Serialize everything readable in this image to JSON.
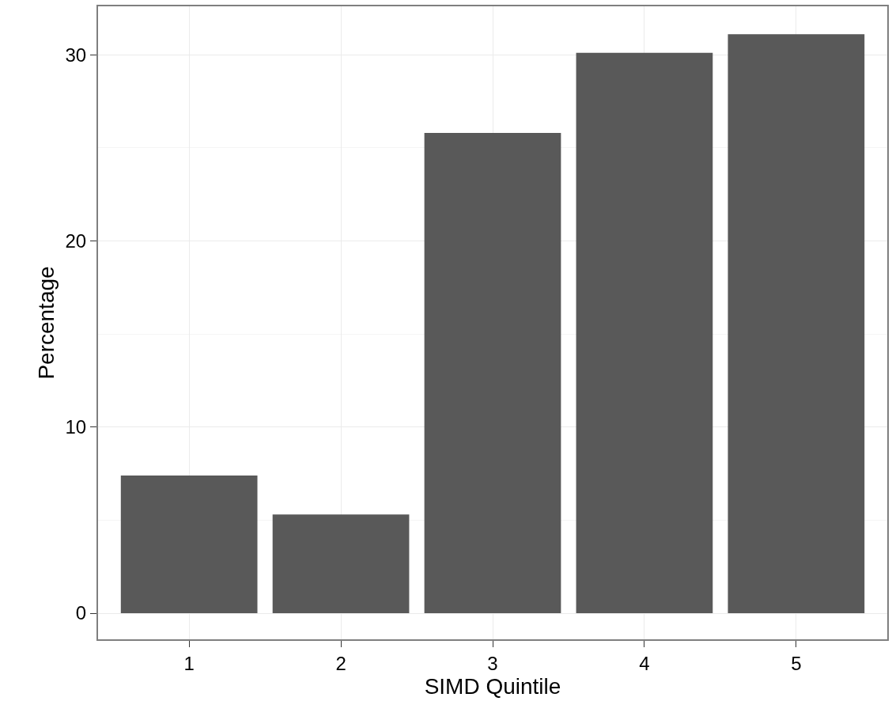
{
  "chart_data": {
    "type": "bar",
    "xlabel": "SIMD Quintile",
    "ylabel": "Percentage",
    "categories": [
      "1",
      "2",
      "3",
      "4",
      "5"
    ],
    "values": [
      7.4,
      5.3,
      25.8,
      30.1,
      31.1
    ],
    "color": "#595959",
    "ylim": [
      -1.4,
      32.6
    ],
    "yticks": [
      0,
      10,
      20,
      30
    ],
    "grid": true
  }
}
